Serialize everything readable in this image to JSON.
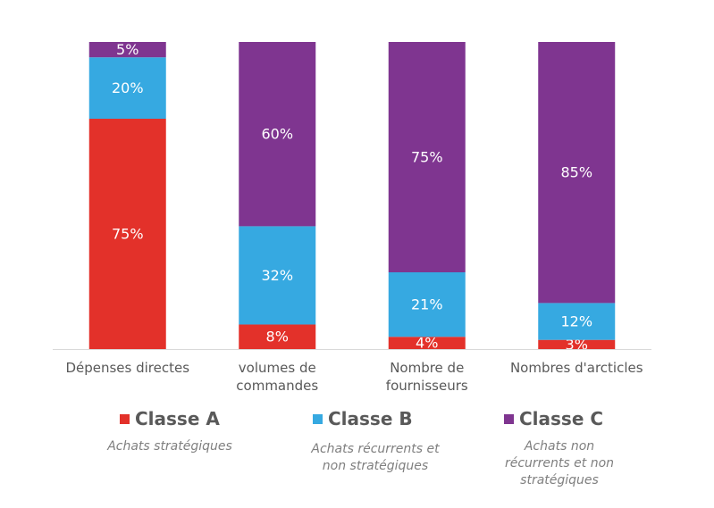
{
  "chart_data": {
    "type": "bar",
    "stacked": true,
    "categories": [
      "Dépenses directes",
      "volumes de commandes",
      "Nombre de fournisseurs",
      "Nombres d'arcticles"
    ],
    "series": [
      {
        "name": "Classe A",
        "values": [
          75,
          8,
          4,
          3
        ],
        "labels": [
          "75%",
          "8%",
          "4%",
          "3%"
        ],
        "color": "#e3312a"
      },
      {
        "name": "Classe B",
        "values": [
          20,
          32,
          21,
          12
        ],
        "labels": [
          "20%",
          "32%",
          "21%",
          "12%"
        ],
        "color": "#36a9e1"
      },
      {
        "name": "Classe C",
        "values": [
          5,
          60,
          75,
          85
        ],
        "labels": [
          "5%",
          "60%",
          "75%",
          "85%"
        ],
        "color": "#7f3590"
      }
    ],
    "category_lines": [
      [
        "Dépenses directes"
      ],
      [
        "volumes de",
        "commandes"
      ],
      [
        "Nombre de",
        "fournisseurs"
      ],
      [
        "Nombres d'arcticles"
      ]
    ],
    "ylim": [
      0,
      100
    ],
    "grid": false,
    "legend_position": "bottom"
  },
  "legend": [
    {
      "label": "Classe A",
      "color": "#e3312a",
      "description": [
        "Achats stratégiques"
      ]
    },
    {
      "label": "Classe B",
      "color": "#36a9e1",
      "description": [
        "Achats récurrents et",
        "non stratégiques"
      ]
    },
    {
      "label": "Classe C",
      "color": "#7f3590",
      "description": [
        "Achats non",
        "récurrents et non",
        "stratégiques"
      ]
    }
  ]
}
